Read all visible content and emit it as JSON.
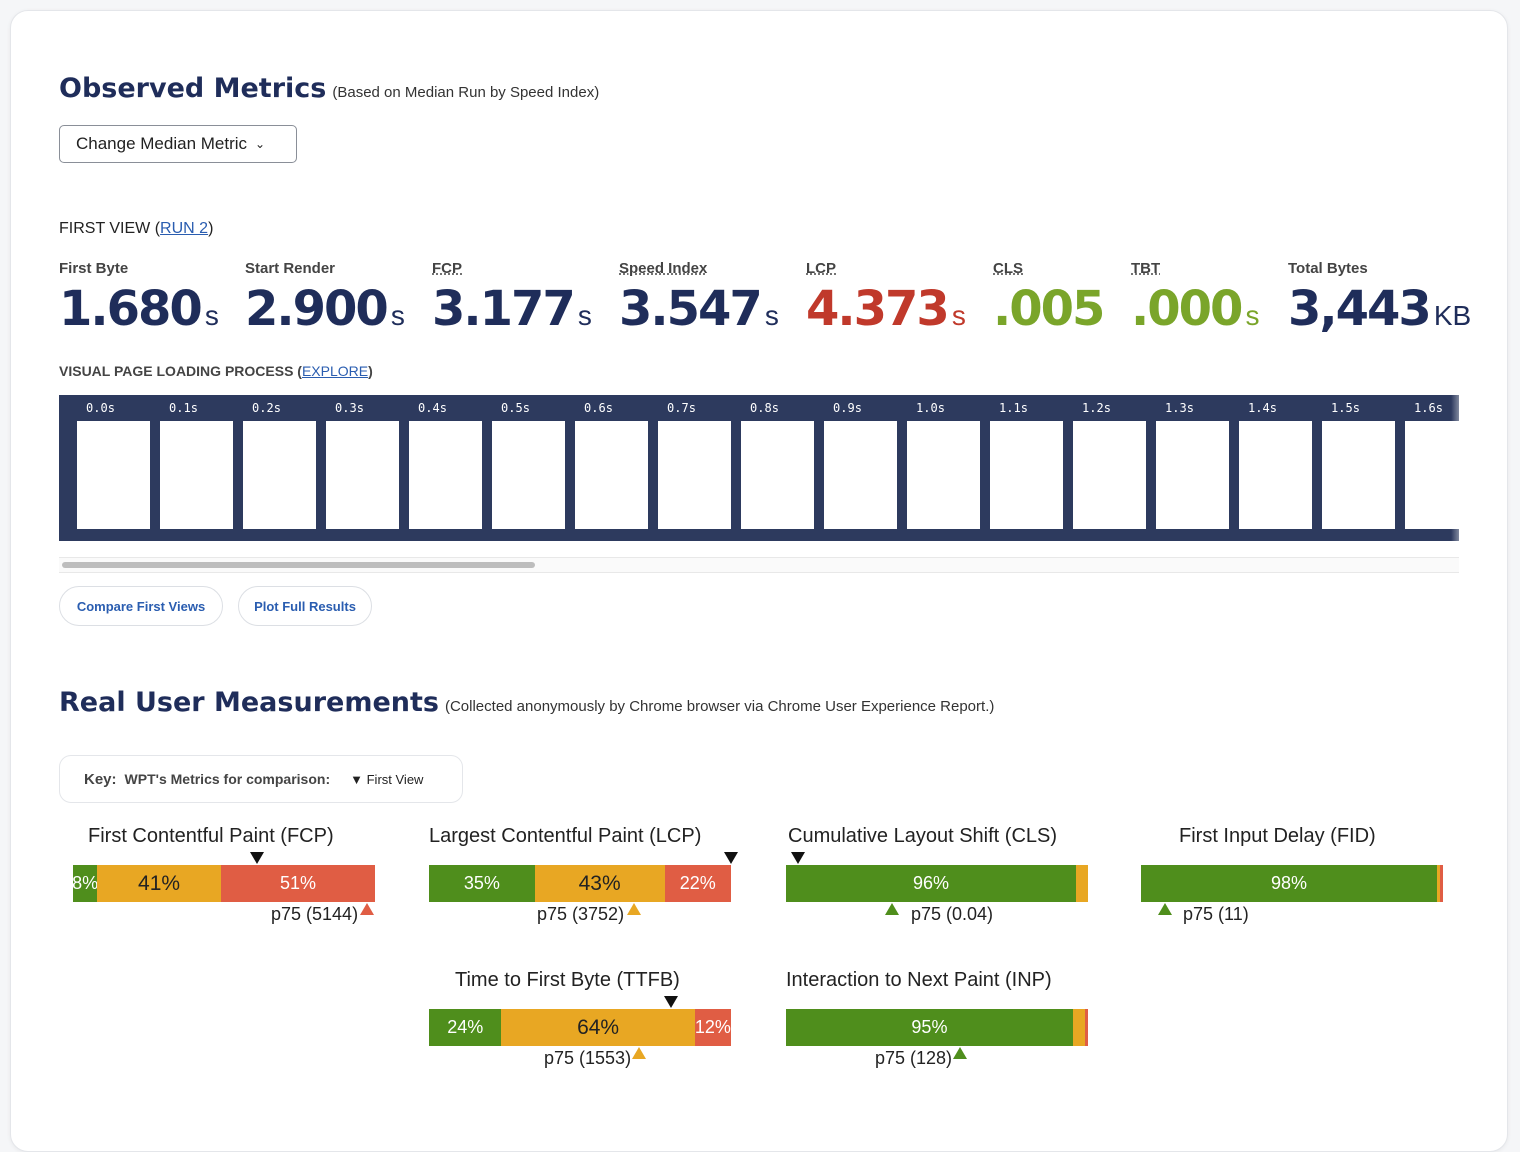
{
  "observed": {
    "title": "Observed Metrics",
    "subtitle": "(Based on Median Run by Speed Index)",
    "median_button": "Change Median Metric",
    "first_view_label": "FIRST VIEW (",
    "run_link": "RUN 2",
    "first_view_close": ")"
  },
  "metrics": [
    {
      "label": "First Byte",
      "value": "1.680",
      "unit": "s"
    },
    {
      "label": "Start Render",
      "value": "2.900",
      "unit": "s"
    },
    {
      "label": "FCP",
      "value": "3.177",
      "unit": "s"
    },
    {
      "label": "Speed Index",
      "value": "3.547",
      "unit": "s"
    },
    {
      "label": "LCP",
      "value": "4.373",
      "unit": "s"
    },
    {
      "label": "CLS",
      "value": ".005",
      "unit": ""
    },
    {
      "label": "TBT",
      "value": ".000",
      "unit": "s"
    },
    {
      "label": "Total Bytes",
      "value": "3,443",
      "unit": "KB"
    }
  ],
  "visual": {
    "label": "VISUAL PAGE LOADING PROCESS (",
    "explore_link": "EXPLORE",
    "close": ")",
    "timestamps": [
      "0.0s",
      "0.1s",
      "0.2s",
      "0.3s",
      "0.4s",
      "0.5s",
      "0.6s",
      "0.7s",
      "0.8s",
      "0.9s",
      "1.0s",
      "1.1s",
      "1.2s",
      "1.3s",
      "1.4s",
      "1.5s",
      "1.6s"
    ]
  },
  "buttons": {
    "compare": "Compare First Views",
    "plot": "Plot Full Results"
  },
  "rum": {
    "title": "Real User Measurements",
    "subtitle": "(Collected anonymously by Chrome browser via Chrome User Experience Report.)",
    "key_label": "Key:",
    "key_text": "WPT's Metrics for comparison:",
    "key_marker": "▼",
    "key_first_view": "First View"
  },
  "crux": [
    {
      "title": "First Contentful Paint (FCP)",
      "good": 8,
      "ni": 41,
      "poor": 51,
      "good_label": "8%",
      "ni_label": "41%",
      "poor_label": "51%",
      "p75": "p75 (5144)",
      "p75_status": "poor",
      "wpt_marker": 0.61
    },
    {
      "title": "Largest Contentful Paint (LCP)",
      "good": 35,
      "ni": 43,
      "poor": 22,
      "good_label": "35%",
      "ni_label": "43%",
      "poor_label": "22%",
      "p75": "p75 (3752)",
      "p75_status": "ni",
      "wpt_marker": 1.0
    },
    {
      "title": "Cumulative Layout Shift (CLS)",
      "good": 96,
      "ni": 4,
      "poor": 0,
      "good_label": "96%",
      "ni_label": "",
      "poor_label": "",
      "p75": "p75 (0.04)",
      "p75_status": "good",
      "wpt_marker": 0.04
    },
    {
      "title": "First Input Delay (FID)",
      "good": 98,
      "ni": 1,
      "poor": 1,
      "good_label": "98%",
      "ni_label": "",
      "poor_label": "",
      "p75": "p75 (11)",
      "p75_status": "good",
      "wpt_marker": null
    },
    {
      "title": "Time to First Byte (TTFB)",
      "good": 24,
      "ni": 64,
      "poor": 12,
      "good_label": "24%",
      "ni_label": "64%",
      "poor_label": "12%",
      "p75": "p75 (1553)",
      "p75_status": "ni",
      "wpt_marker": 0.8
    },
    {
      "title": "Interaction to Next Paint (INP)",
      "good": 95,
      "ni": 4,
      "poor": 1,
      "good_label": "95%",
      "ni_label": "",
      "poor_label": "",
      "p75": "p75 (128)",
      "p75_status": "good",
      "wpt_marker": null
    }
  ],
  "colors": {
    "good": "#4f8e1c",
    "ni": "#e8a723",
    "poor": "#e05d44",
    "navy": "#1f2d5a"
  }
}
